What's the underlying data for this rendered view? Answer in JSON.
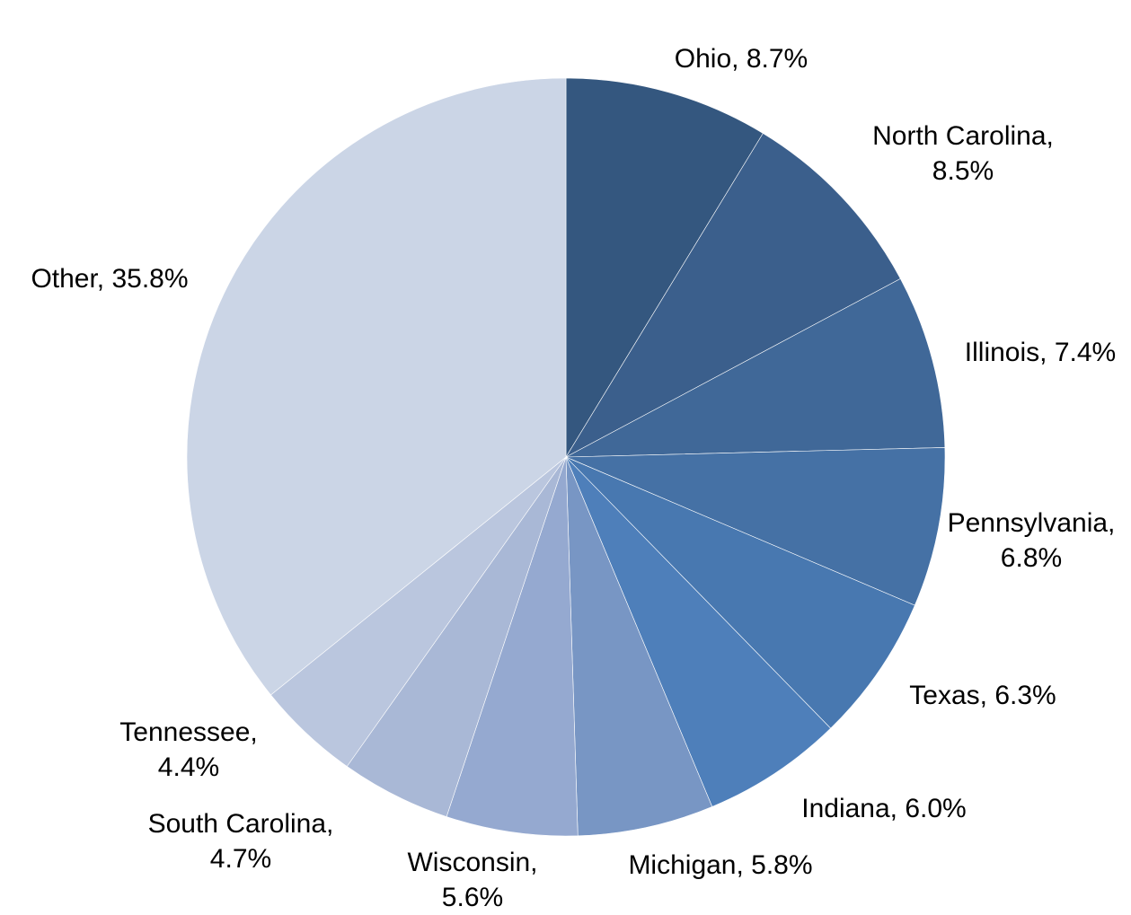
{
  "chart_data": {
    "type": "pie",
    "title": "",
    "slices": [
      {
        "label": "Ohio",
        "value": 8.7,
        "value_label": "8.7%",
        "color": "#34577f"
      },
      {
        "label": "North Carolina",
        "value": 8.5,
        "value_label": "8.5%",
        "color": "#3b5f8c"
      },
      {
        "label": "Illinois",
        "value": 7.4,
        "value_label": "7.4%",
        "color": "#406898"
      },
      {
        "label": "Pennsylvania",
        "value": 6.8,
        "value_label": "6.8%",
        "color": "#4571a5"
      },
      {
        "label": "Texas",
        "value": 6.3,
        "value_label": "6.3%",
        "color": "#4878b0"
      },
      {
        "label": "Indiana",
        "value": 6.0,
        "value_label": "6.0%",
        "color": "#4e7fba"
      },
      {
        "label": "Michigan",
        "value": 5.8,
        "value_label": "5.8%",
        "color": "#7896c4"
      },
      {
        "label": "Wisconsin",
        "value": 5.6,
        "value_label": "5.6%",
        "color": "#95a9d0"
      },
      {
        "label": "South Carolina",
        "value": 4.7,
        "value_label": "4.7%",
        "color": "#a9b8d6"
      },
      {
        "label": "Tennessee",
        "value": 4.4,
        "value_label": "4.4%",
        "color": "#bac6de"
      },
      {
        "label": "Other",
        "value": 35.8,
        "value_label": "35.8%",
        "color": "#cbd5e6"
      }
    ]
  }
}
